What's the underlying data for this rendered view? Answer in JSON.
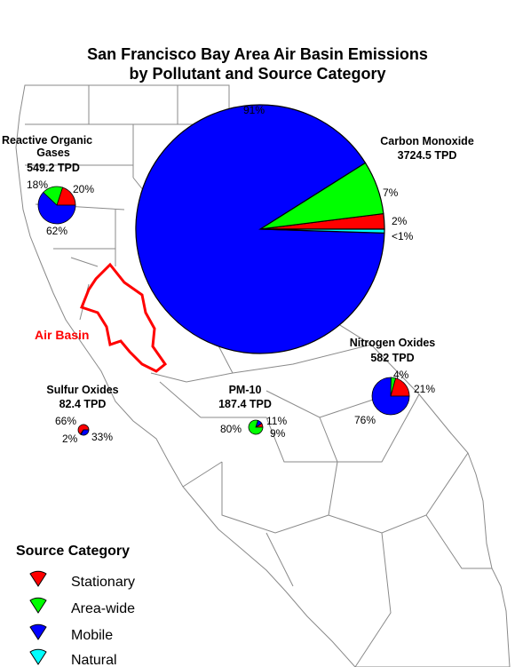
{
  "title_line1": "San Francisco Bay Area Air Basin Emissions",
  "title_line2": "by Pollutant and Source Category",
  "air_basin_label": "Air Basin",
  "legend": {
    "title": "Source Category",
    "items": [
      {
        "label": "Stationary",
        "color": "#ff0000"
      },
      {
        "label": "Area-wide",
        "color": "#00ff00"
      },
      {
        "label": "Mobile",
        "color": "#0000ff"
      },
      {
        "label": "Natural",
        "color": "#00ffff"
      }
    ]
  },
  "colors": {
    "stationary": "#ff0000",
    "area_wide": "#00ff00",
    "mobile": "#0000ff",
    "natural": "#00ffff",
    "basin_outline": "#ff0000",
    "map_lines": "#8a8a8a"
  },
  "chart_data": [
    {
      "type": "pie",
      "name": "Carbon Monoxide",
      "total": "3724.5 TPD",
      "categories": [
        "Stationary",
        "Area-wide",
        "Mobile",
        "Natural"
      ],
      "values": [
        2,
        7,
        91,
        0.5
      ],
      "labels": [
        "2%",
        "7%",
        "91%",
        "<1%"
      ]
    },
    {
      "type": "pie",
      "name": "Reactive Organic Gases",
      "total": "549.2 TPD",
      "categories": [
        "Stationary",
        "Area-wide",
        "Mobile"
      ],
      "values": [
        20,
        18,
        62
      ],
      "labels": [
        "20%",
        "18%",
        "62%"
      ]
    },
    {
      "type": "pie",
      "name": "Nitrogen Oxides",
      "total": "582 TPD",
      "categories": [
        "Stationary",
        "Area-wide",
        "Mobile"
      ],
      "values": [
        21,
        4,
        76
      ],
      "labels": [
        "21%",
        "4%",
        "76%"
      ]
    },
    {
      "type": "pie",
      "name": "PM-10",
      "total": "187.4 TPD",
      "categories": [
        "Stationary",
        "Area-wide",
        "Mobile"
      ],
      "values": [
        9,
        80,
        11
      ],
      "labels": [
        "9%",
        "80%",
        "11%"
      ]
    },
    {
      "type": "pie",
      "name": "Sulfur Oxides",
      "total": "82.4 TPD",
      "categories": [
        "Stationary",
        "Area-wide",
        "Mobile"
      ],
      "values": [
        66,
        2,
        33
      ],
      "labels": [
        "66%",
        "2%",
        "33%"
      ]
    }
  ]
}
